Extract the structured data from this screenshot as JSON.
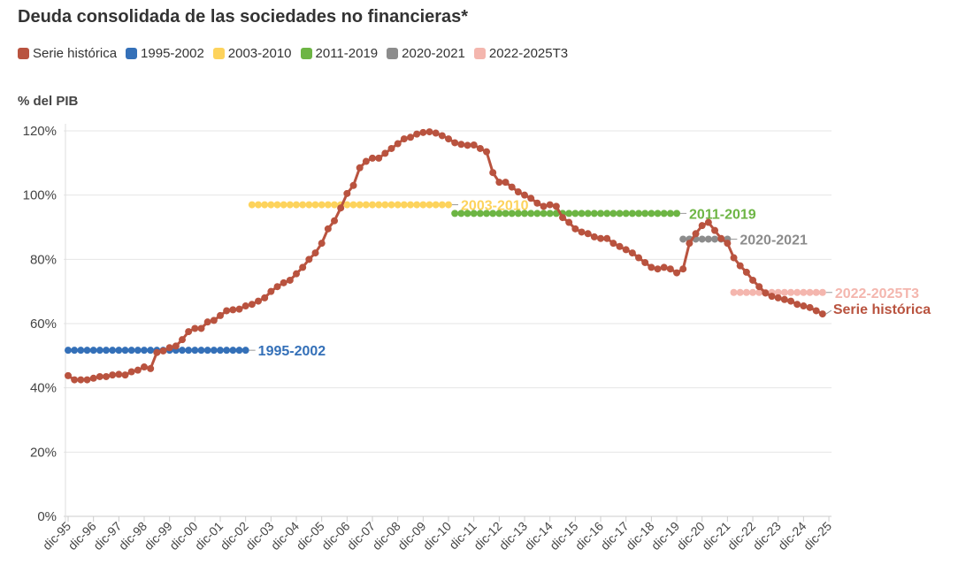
{
  "title": "Deuda consolidada de las sociedades no financieras*",
  "chart_data": {
    "type": "line",
    "title": "Deuda consolidada de las sociedades no financieras*",
    "ylabel": "% del PIB",
    "ylim": [
      0,
      120
    ],
    "yticks": [
      "0%",
      "20%",
      "40%",
      "60%",
      "80%",
      "100%",
      "120%"
    ],
    "xticks": [
      "dic-95",
      "dic-96",
      "dic-97",
      "dic-98",
      "dic-99",
      "dic-00",
      "dic-01",
      "dic-02",
      "dic-03",
      "dic-04",
      "dic-05",
      "dic-06",
      "dic-07",
      "dic-08",
      "dic-09",
      "dic-10",
      "dic-11",
      "dic-12",
      "dic-13",
      "dic-14",
      "dic-15",
      "dic-16",
      "dic-17",
      "dic-18",
      "dic-19",
      "dic-20",
      "dic-21",
      "dic-22",
      "dic-23",
      "dic-24",
      "dic-25"
    ],
    "grid": true,
    "legend_position": "top",
    "x_start": "dic-95",
    "x_frequency": "quarterly",
    "series": [
      {
        "name": "Serie histórica",
        "color": "#b9533f",
        "values": [
          43.8,
          42.5,
          42.5,
          42.5,
          43,
          43.5,
          43.5,
          44,
          44.2,
          44,
          45,
          45.5,
          46.5,
          46,
          51,
          51.5,
          52.5,
          53,
          55,
          57.5,
          58.5,
          58.5,
          60.5,
          61,
          62.5,
          64,
          64.3,
          64.5,
          65.5,
          66,
          67,
          68,
          70,
          71.5,
          72.7,
          73.5,
          75.5,
          77.5,
          80,
          82,
          85,
          89.5,
          92,
          96,
          100.5,
          103,
          108.5,
          110.5,
          111.5,
          111.5,
          113,
          114.5,
          116,
          117.5,
          118,
          119,
          119.5,
          119.7,
          119.3,
          118.5,
          117.5,
          116.3,
          115.8,
          115.5,
          115.6,
          114.5,
          113.5,
          107,
          104,
          104,
          102.5,
          101,
          100,
          99,
          97.5,
          96.5,
          97,
          96.5,
          93,
          91.5,
          89.5,
          88.5,
          88,
          87,
          86.5,
          86.5,
          85,
          84,
          83,
          82,
          80.5,
          79,
          77.5,
          77,
          77.5,
          77,
          75.8,
          77,
          85,
          88,
          90.5,
          91.5,
          89,
          86.5,
          85,
          80.5,
          78,
          76,
          73.5,
          71.5,
          69.5,
          68.5,
          68,
          67.5,
          67,
          66,
          65.5,
          65,
          64,
          63
        ]
      },
      {
        "name": "1995-2002",
        "color": "#3470b8",
        "value": 51.7,
        "from_index": 0,
        "to_index": 28
      },
      {
        "name": "2003-2010",
        "color": "#fdd35c",
        "value": 97,
        "from_index": 29,
        "to_index": 60
      },
      {
        "name": "2011-2019",
        "color": "#6db544",
        "value": 94.3,
        "from_index": 61,
        "to_index": 96
      },
      {
        "name": "2020-2021",
        "color": "#8c8c8c",
        "value": 86.3,
        "from_index": 97,
        "to_index": 104
      },
      {
        "name": "2022-2025T3",
        "color": "#f4b6ae",
        "value": 69.7,
        "from_index": 105,
        "to_index": 119
      }
    ]
  }
}
